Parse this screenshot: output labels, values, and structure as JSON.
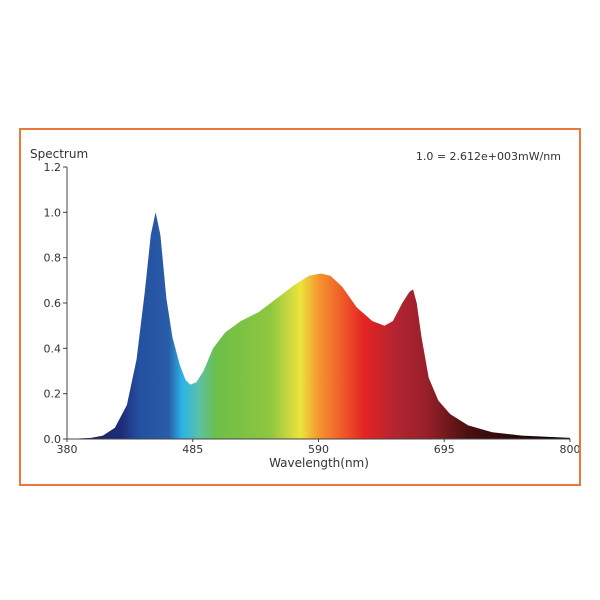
{
  "chart_data": {
    "type": "area",
    "title": "",
    "ylabel": "Spectrum",
    "xlabel": "Wavelength(nm)",
    "annotation": "1.0 = 2.612e+003mW/nm",
    "xlim": [
      380,
      800
    ],
    "ylim": [
      0,
      1.2
    ],
    "xticks": [
      380,
      485,
      590,
      695,
      800
    ],
    "yticks": [
      0.0,
      0.2,
      0.4,
      0.6,
      0.8,
      1.0,
      1.2
    ],
    "ytick_labels": [
      "0.0",
      "0.2",
      "0.4",
      "0.6",
      "0.8",
      "1.0",
      "1.2"
    ],
    "grid": false,
    "series": [
      {
        "name": "Spectrum",
        "x": [
          380,
          400,
          410,
          420,
          430,
          438,
          445,
          450,
          454,
          458,
          463,
          468,
          474,
          479,
          483,
          488,
          494,
          502,
          512,
          525,
          540,
          555,
          570,
          582,
          592,
          600,
          610,
          622,
          635,
          645,
          652,
          660,
          666,
          669,
          672,
          676,
          682,
          690,
          700,
          715,
          735,
          760,
          800
        ],
        "y": [
          0,
          0.005,
          0.015,
          0.05,
          0.15,
          0.35,
          0.65,
          0.9,
          1.0,
          0.9,
          0.62,
          0.45,
          0.33,
          0.26,
          0.24,
          0.25,
          0.3,
          0.4,
          0.47,
          0.52,
          0.56,
          0.62,
          0.68,
          0.72,
          0.73,
          0.72,
          0.67,
          0.58,
          0.52,
          0.5,
          0.52,
          0.6,
          0.65,
          0.66,
          0.6,
          0.45,
          0.27,
          0.17,
          0.11,
          0.06,
          0.03,
          0.015,
          0.005
        ]
      }
    ],
    "color_stops": [
      {
        "nm": 380,
        "color": "#1b1b4a"
      },
      {
        "nm": 425,
        "color": "#1e2c78"
      },
      {
        "nm": 440,
        "color": "#2450a0"
      },
      {
        "nm": 465,
        "color": "#2a5ca8"
      },
      {
        "nm": 476,
        "color": "#2ab4e6"
      },
      {
        "nm": 490,
        "color": "#5cc0a8"
      },
      {
        "nm": 505,
        "color": "#6cbf48"
      },
      {
        "nm": 550,
        "color": "#90c640"
      },
      {
        "nm": 575,
        "color": "#ece43c"
      },
      {
        "nm": 590,
        "color": "#f5962e"
      },
      {
        "nm": 610,
        "color": "#ef5a2a"
      },
      {
        "nm": 628,
        "color": "#e42422"
      },
      {
        "nm": 655,
        "color": "#b22430"
      },
      {
        "nm": 680,
        "color": "#98202a"
      },
      {
        "nm": 715,
        "color": "#4a1010"
      },
      {
        "nm": 800,
        "color": "#050000"
      }
    ]
  }
}
